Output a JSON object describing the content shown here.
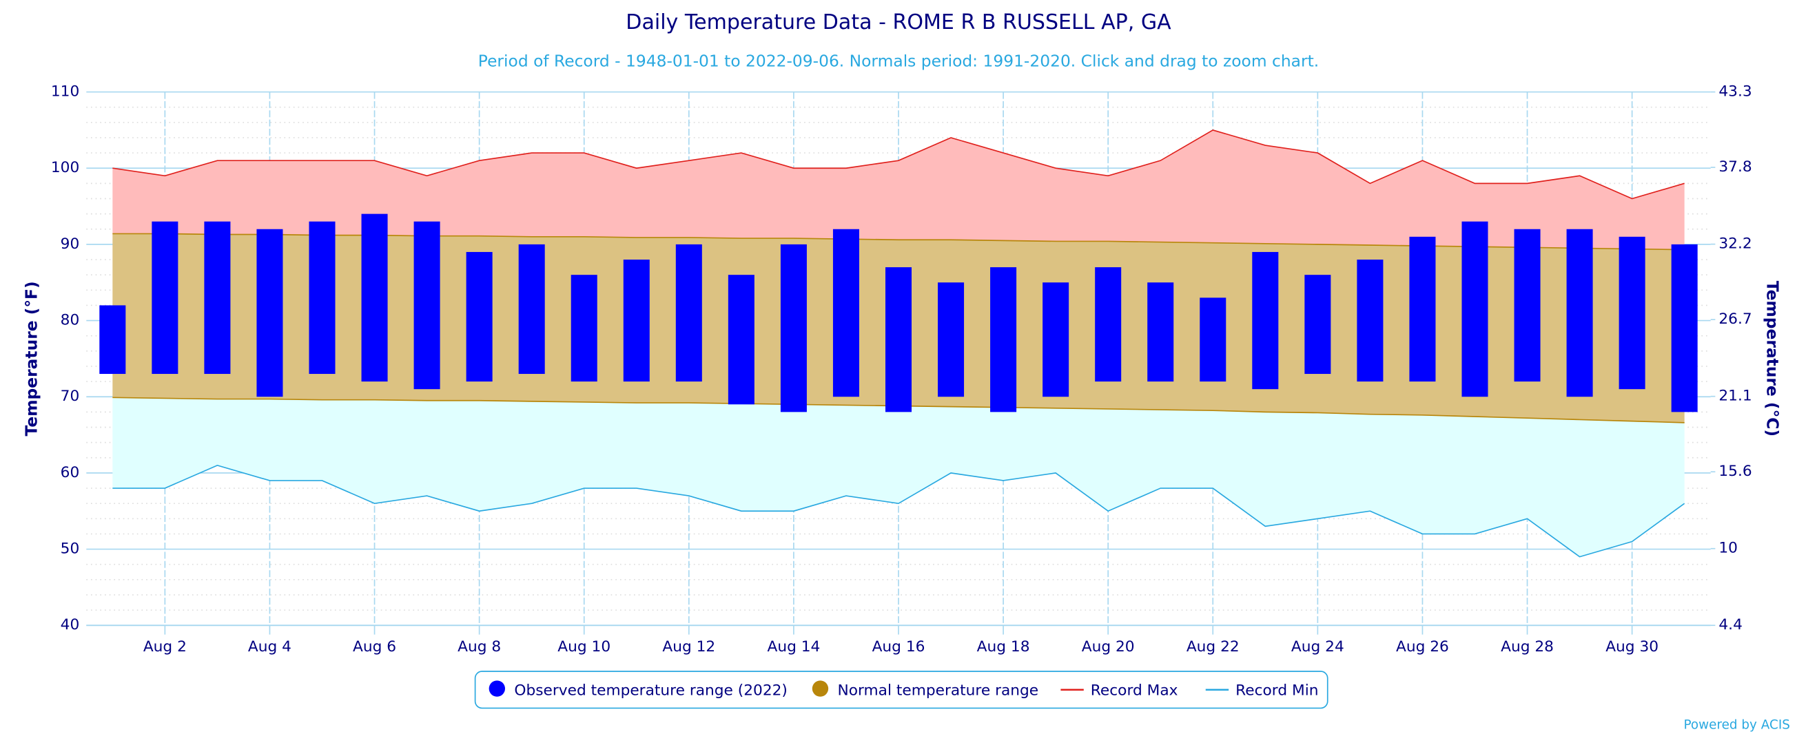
{
  "chart_data": {
    "type": "range",
    "title": "Daily Temperature Data - ROME R B RUSSELL AP, GA",
    "subtitle": "Period of Record - 1948-01-01 to 2022-09-06. Normals period: 1991-2020. Click and drag to zoom chart.",
    "ylabel": "Temperature (°F)",
    "y2label": "Temperature (°C)",
    "credit": "Powered by ACIS",
    "categories": [
      null,
      "Aug 2",
      null,
      "Aug 4",
      null,
      "Aug 6",
      null,
      "Aug 8",
      null,
      "Aug 10",
      null,
      "Aug 12",
      null,
      "Aug 14",
      null,
      "Aug 16",
      null,
      "Aug 18",
      null,
      "Aug 20",
      null,
      "Aug 22",
      null,
      "Aug 24",
      null,
      "Aug 26",
      null,
      "Aug 28",
      null,
      "Aug 30",
      null
    ],
    "ylim": [
      40,
      110
    ],
    "yticks": [
      40,
      50,
      60,
      70,
      80,
      90,
      100,
      110
    ],
    "y2lim": [
      4.4,
      43.3
    ],
    "y2ticks": [
      4.4,
      10,
      15.6,
      21.1,
      26.7,
      32.2,
      37.8,
      43.3
    ],
    "grid": true,
    "series": [
      {
        "name": "Observed temperature range (2022)",
        "color": "#0000ff",
        "low": [
          73,
          73,
          73,
          70,
          73,
          72,
          71,
          72,
          73,
          72,
          72,
          72,
          69,
          68,
          70,
          68,
          70,
          68,
          70,
          72,
          72,
          72,
          71,
          73,
          72,
          72,
          70,
          72,
          70,
          71,
          68
        ],
        "high": [
          82,
          93,
          93,
          92,
          93,
          94,
          93,
          89,
          90,
          86,
          88,
          90,
          86,
          90,
          92,
          87,
          85,
          87,
          85,
          87,
          85,
          83,
          89,
          86,
          88,
          91,
          93,
          92,
          92,
          91,
          90
        ]
      },
      {
        "name": "Normal temperature range",
        "color": "#b8860b",
        "fill": "#dcc282",
        "low": [
          69.9,
          69.8,
          69.7,
          69.7,
          69.6,
          69.6,
          69.5,
          69.5,
          69.4,
          69.3,
          69.2,
          69.2,
          69.1,
          69.0,
          68.9,
          68.8,
          68.7,
          68.6,
          68.5,
          68.4,
          68.3,
          68.2,
          68.0,
          67.9,
          67.7,
          67.6,
          67.4,
          67.2,
          67.0,
          66.8,
          66.6
        ],
        "high": [
          91.4,
          91.4,
          91.3,
          91.3,
          91.2,
          91.2,
          91.1,
          91.1,
          91.0,
          91.0,
          90.9,
          90.9,
          90.8,
          90.8,
          90.7,
          90.6,
          90.6,
          90.5,
          90.4,
          90.4,
          90.3,
          90.2,
          90.1,
          90.0,
          89.9,
          89.8,
          89.7,
          89.6,
          89.5,
          89.4,
          89.3
        ]
      },
      {
        "name": "Record Max",
        "color": "#e0201c",
        "fill": "#ffbbbb",
        "values": [
          100,
          99,
          101,
          101,
          101,
          101,
          99,
          101,
          102,
          102,
          100,
          101,
          102,
          100,
          100,
          101,
          104,
          102,
          100,
          99,
          101,
          105,
          103,
          102,
          98,
          101,
          98,
          98,
          99,
          96,
          98
        ]
      },
      {
        "name": "Record Min",
        "color": "#29a8e0",
        "fill": "#e0ffff",
        "values": [
          58,
          58,
          61,
          59,
          59,
          56,
          57,
          55,
          56,
          58,
          58,
          57,
          55,
          55,
          57,
          56,
          60,
          59,
          60,
          55,
          58,
          58,
          53,
          54,
          55,
          52,
          52,
          54,
          49,
          51,
          56
        ]
      }
    ]
  }
}
